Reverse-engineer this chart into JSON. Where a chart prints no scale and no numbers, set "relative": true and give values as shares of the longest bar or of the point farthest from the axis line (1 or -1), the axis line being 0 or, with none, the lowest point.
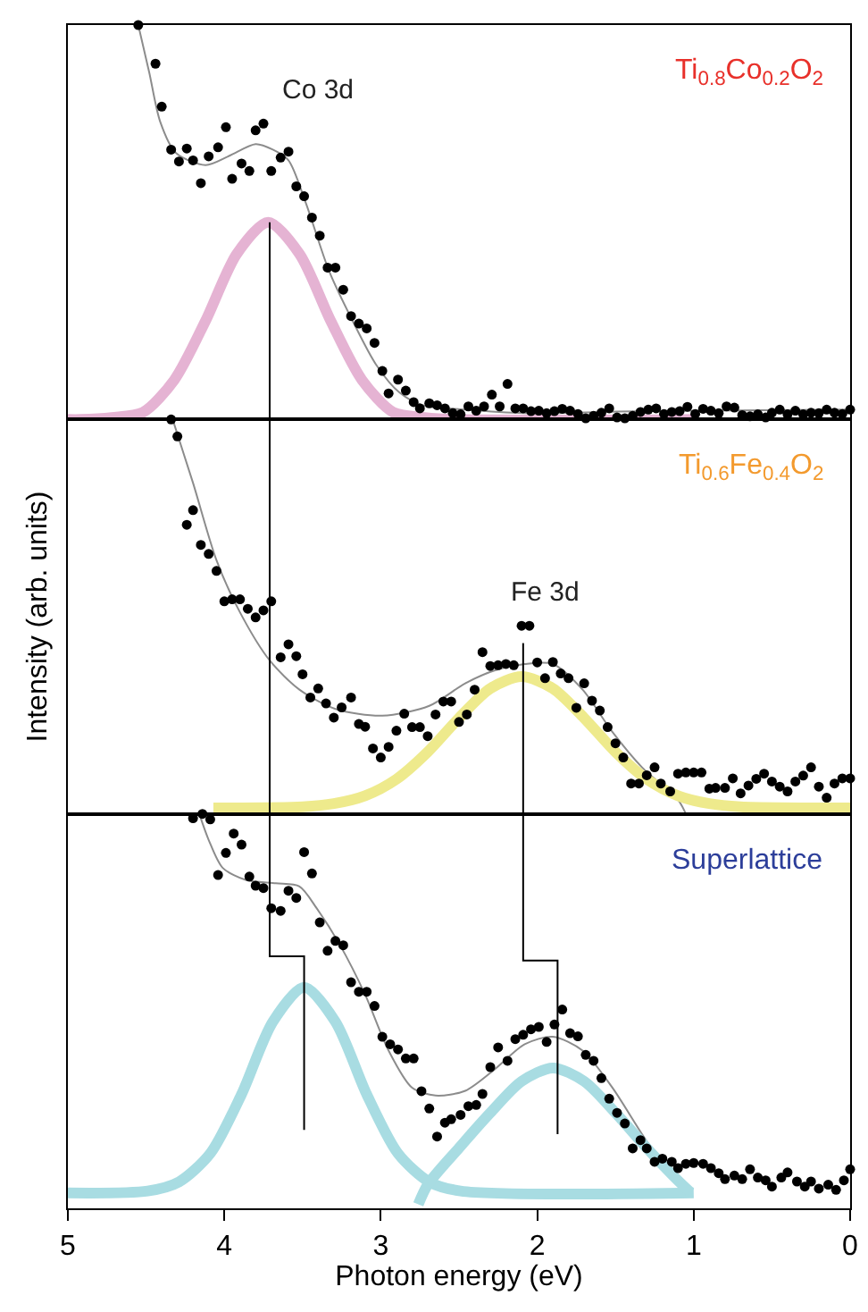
{
  "chart_data": [
    {
      "type": "scatter",
      "title": "Ti$_{0.8}$Co$_{0.2}$O$_{2}$",
      "relative": true,
      "xlim": [
        5,
        0
      ],
      "tick_labels": false,
      "marker": "circle",
      "annotations": [
        "Co 3d"
      ],
      "series": [
        {
          "color": "#000000",
          "x": [
            4.55,
            4.44,
            4.4,
            4.34,
            4.29,
            4.24,
            4.2,
            4.15,
            4.1,
            4.04,
            3.99,
            3.95,
            3.89,
            3.84,
            3.8,
            3.75,
            3.7,
            3.64,
            3.59,
            3.54,
            3.49,
            3.44,
            3.39,
            3.34,
            3.29,
            3.24,
            3.19,
            3.14,
            3.09,
            3.04,
            2.99,
            2.95,
            2.89,
            2.84,
            2.79,
            2.75,
            2.69,
            2.64,
            2.59,
            2.54,
            2.49,
            2.44,
            2.39,
            2.34,
            2.29,
            2.24,
            2.19,
            2.14,
            2.09,
            2.04,
            1.99,
            1.94,
            1.89,
            1.84,
            1.79,
            1.74,
            1.69,
            1.64,
            1.59,
            1.54,
            1.49,
            1.44,
            1.39,
            1.34,
            1.29,
            1.24,
            1.19,
            1.14,
            1.09,
            1.04,
            0.99,
            0.94,
            0.89,
            0.84,
            0.79,
            0.74,
            0.69,
            0.64,
            0.59,
            0.54,
            0.5,
            0.45,
            0.4,
            0.35,
            0.3,
            0.25,
            0.2,
            0.15,
            0.1,
            0.05,
            0.0
          ],
          "values": [
            1.0,
            0.902,
            0.793,
            0.684,
            0.654,
            0.687,
            0.657,
            0.599,
            0.667,
            0.69,
            0.741,
            0.61,
            0.649,
            0.63,
            0.733,
            0.75,
            0.63,
            0.664,
            0.679,
            0.591,
            0.566,
            0.512,
            0.466,
            0.385,
            0.385,
            0.329,
            0.262,
            0.243,
            0.231,
            0.194,
            0.123,
            0.066,
            0.101,
            0.073,
            0.044,
            0.028,
            0.041,
            0.036,
            0.028,
            0.016,
            0.013,
            0.033,
            0.022,
            0.033,
            0.063,
            0.033,
            0.09,
            0.028,
            0.028,
            0.021,
            0.022,
            0.016,
            0.021,
            0.027,
            0.022,
            0.014,
            0.003,
            0.009,
            0.017,
            0.028,
            0.005,
            0.003,
            0.009,
            0.019,
            0.025,
            0.028,
            0.014,
            0.019,
            0.021,
            0.032,
            0.014,
            0.027,
            0.022,
            0.016,
            0.033,
            0.03,
            0.011,
            0.008,
            0.013,
            0.005,
            0.017,
            0.025,
            0.013,
            0.022,
            0.013,
            0.017,
            0.016,
            0.025,
            0.017,
            0.014,
            0.025
          ]
        },
        {
          "type": "line",
          "marker": "none",
          "color": "#8c8c8c",
          "x": [
            4.55,
            4.48,
            4.41,
            4.31,
            4.12,
            3.97,
            3.8,
            3.69,
            3.59,
            3.48,
            3.33,
            3.18,
            3.03,
            2.88,
            2.73,
            2.46,
            2.08,
            1.33,
            0.0
          ],
          "values": [
            1.0,
            0.88,
            0.755,
            0.676,
            0.645,
            0.668,
            0.698,
            0.684,
            0.657,
            0.55,
            0.376,
            0.25,
            0.139,
            0.068,
            0.036,
            0.025,
            0.016,
            0.021,
            0.025
          ]
        },
        {
          "type": "line",
          "marker": "none",
          "color": "#e5b3d3",
          "x": [
            5.0,
            4.92,
            4.72,
            4.52,
            4.32,
            4.12,
            3.92,
            3.72,
            3.52,
            3.32,
            3.12,
            2.92,
            2.72,
            2.52,
            1.0
          ],
          "values": [
            0.0,
            0.0,
            0.005,
            0.018,
            0.1,
            0.25,
            0.42,
            0.5,
            0.42,
            0.25,
            0.1,
            0.018,
            0.005,
            0.0,
            0.0
          ]
        },
        {
          "type": "line",
          "marker": "none",
          "color": "#000000",
          "x": [
            3.71,
            3.71
          ],
          "values": [
            0.5,
            0.0
          ]
        }
      ]
    },
    {
      "type": "scatter",
      "title": "Ti$_{0.6}$Fe$_{0.4}$O$_{2}$",
      "ylabel": "Intensity (arb. units)",
      "relative": true,
      "xlim": [
        5,
        0
      ],
      "tick_labels": false,
      "marker": "circle",
      "annotations": [
        "Fe 3d"
      ],
      "ref_lines": [
        {
          "axis": "x",
          "value": 3.71,
          "color": "#000000"
        }
      ],
      "series": [
        {
          "color": "#000000",
          "x": [
            4.34,
            4.3,
            4.24,
            4.2,
            4.15,
            4.1,
            4.05,
            4.0,
            3.95,
            3.9,
            3.85,
            3.8,
            3.75,
            3.7,
            3.64,
            3.59,
            3.54,
            3.5,
            3.45,
            3.4,
            3.35,
            3.3,
            3.25,
            3.19,
            3.14,
            3.1,
            3.05,
            3.0,
            2.95,
            2.9,
            2.85,
            2.8,
            2.75,
            2.7,
            2.65,
            2.6,
            2.55,
            2.5,
            2.45,
            2.4,
            2.35,
            2.3,
            2.25,
            2.2,
            2.15,
            2.1,
            2.05,
            2.0,
            1.95,
            1.9,
            1.85,
            1.8,
            1.75,
            1.7,
            1.65,
            1.6,
            1.55,
            1.5,
            1.45,
            1.4,
            1.35,
            1.3,
            1.25,
            1.21,
            1.15,
            1.1,
            1.05,
            1.0,
            0.95,
            0.9,
            0.86,
            0.8,
            0.75,
            0.7,
            0.65,
            0.6,
            0.55,
            0.5,
            0.45,
            0.4,
            0.35,
            0.3,
            0.25,
            0.2,
            0.15,
            0.1,
            0.05,
            0.0
          ],
          "values": [
            1.0,
            0.957,
            0.733,
            0.77,
            0.682,
            0.659,
            0.616,
            0.539,
            0.544,
            0.544,
            0.52,
            0.498,
            0.516,
            0.539,
            0.397,
            0.43,
            0.4,
            0.354,
            0.295,
            0.318,
            0.28,
            0.244,
            0.27,
            0.295,
            0.228,
            0.221,
            0.166,
            0.143,
            0.17,
            0.211,
            0.254,
            0.22,
            0.22,
            0.197,
            0.252,
            0.285,
            0.285,
            0.233,
            0.252,
            0.315,
            0.41,
            0.375,
            0.377,
            0.38,
            0.377,
            0.477,
            0.477,
            0.384,
            0.344,
            0.385,
            0.356,
            0.344,
            0.269,
            0.331,
            0.287,
            0.262,
            0.22,
            0.179,
            0.143,
            0.077,
            0.077,
            0.098,
            0.118,
            0.077,
            0.057,
            0.102,
            0.105,
            0.105,
            0.105,
            0.064,
            0.066,
            0.066,
            0.09,
            0.052,
            0.072,
            0.089,
            0.102,
            0.082,
            0.069,
            0.057,
            0.082,
            0.097,
            0.118,
            0.069,
            0.041,
            0.077,
            0.09,
            0.09
          ]
        },
        {
          "type": "line",
          "marker": "none",
          "color": "#8c8c8c",
          "x": [
            4.33,
            4.2,
            4.05,
            3.9,
            3.71,
            3.52,
            3.29,
            2.99,
            2.69,
            2.46,
            2.27,
            2.08,
            1.9,
            1.71,
            1.52,
            1.33,
            1.1,
            1.05
          ],
          "values": [
            1.0,
            0.839,
            0.643,
            0.511,
            0.389,
            0.315,
            0.266,
            0.249,
            0.274,
            0.331,
            0.364,
            0.38,
            0.38,
            0.315,
            0.208,
            0.118,
            0.036,
            0.0
          ]
        },
        {
          "type": "line",
          "marker": "none",
          "color": "#eeea8c",
          "x": [
            4.07,
            3.5,
            3.3,
            3.1,
            2.9,
            2.7,
            2.5,
            2.3,
            2.1,
            1.9,
            1.7,
            1.5,
            1.3,
            1.1,
            0.9,
            0.7,
            0.0
          ],
          "values": [
            0.015,
            0.018,
            0.026,
            0.046,
            0.088,
            0.157,
            0.243,
            0.318,
            0.348,
            0.318,
            0.243,
            0.157,
            0.088,
            0.046,
            0.026,
            0.018,
            0.015
          ]
        },
        {
          "type": "line",
          "marker": "none",
          "color": "#000000",
          "x": [
            2.09,
            2.09
          ],
          "values": [
            0.433,
            0.0
          ]
        }
      ]
    },
    {
      "type": "scatter",
      "title": "Superlattice",
      "xlabel": "Photon energy (eV)",
      "relative": true,
      "xlim": [
        5,
        0
      ],
      "xticks": [
        5,
        4,
        3,
        2,
        1,
        0
      ],
      "tick_labels": "x",
      "marker": "circle",
      "series": [
        {
          "color": "#000000",
          "x": [
            4.2,
            4.14,
            4.09,
            4.04,
            3.99,
            3.94,
            3.89,
            3.84,
            3.8,
            3.75,
            3.7,
            3.64,
            3.59,
            3.54,
            3.49,
            3.44,
            3.39,
            3.34,
            3.29,
            3.24,
            3.19,
            3.14,
            3.09,
            3.04,
            2.99,
            2.94,
            2.89,
            2.84,
            2.79,
            2.74,
            2.69,
            2.64,
            2.59,
            2.55,
            2.49,
            2.44,
            2.39,
            2.35,
            2.3,
            2.25,
            2.19,
            2.14,
            2.09,
            2.04,
            1.99,
            1.94,
            1.89,
            1.84,
            1.79,
            1.74,
            1.69,
            1.64,
            1.59,
            1.54,
            1.49,
            1.44,
            1.39,
            1.34,
            1.3,
            1.25,
            1.2,
            1.14,
            1.1,
            1.05,
            1.0,
            0.94,
            0.89,
            0.84,
            0.8,
            0.74,
            0.69,
            0.64,
            0.59,
            0.54,
            0.5,
            0.44,
            0.4,
            0.34,
            0.29,
            0.25,
            0.2,
            0.14,
            0.09,
            0.04,
            0.0
          ],
          "values": [
            0.989,
            1.0,
            0.986,
            0.845,
            0.901,
            0.95,
            0.922,
            0.841,
            0.818,
            0.812,
            0.761,
            0.754,
            0.805,
            0.787,
            0.903,
            0.849,
            0.725,
            0.653,
            0.678,
            0.667,
            0.573,
            0.549,
            0.549,
            0.513,
            0.435,
            0.416,
            0.403,
            0.38,
            0.38,
            0.297,
            0.253,
            0.182,
            0.217,
            0.226,
            0.237,
            0.259,
            0.262,
            0.29,
            0.358,
            0.408,
            0.374,
            0.429,
            0.44,
            0.454,
            0.46,
            0.422,
            0.466,
            0.504,
            0.444,
            0.436,
            0.389,
            0.374,
            0.33,
            0.278,
            0.242,
            0.215,
            0.152,
            0.173,
            0.152,
            0.118,
            0.126,
            0.118,
            0.102,
            0.113,
            0.115,
            0.113,
            0.102,
            0.089,
            0.074,
            0.083,
            0.074,
            0.099,
            0.078,
            0.071,
            0.055,
            0.078,
            0.091,
            0.068,
            0.055,
            0.068,
            0.05,
            0.06,
            0.047,
            0.071,
            0.099
          ]
        },
        {
          "type": "line",
          "marker": "none",
          "color": "#8c8c8c",
          "x": [
            4.16,
            4.1,
            4.01,
            3.86,
            3.67,
            3.52,
            3.41,
            3.26,
            3.1,
            2.95,
            2.8,
            2.65,
            2.46,
            2.27,
            2.08,
            1.9,
            1.71,
            1.52,
            1.33,
            1.18,
            1.1
          ],
          "values": [
            1.0,
            0.934,
            0.863,
            0.832,
            0.824,
            0.816,
            0.761,
            0.667,
            0.542,
            0.4,
            0.306,
            0.286,
            0.298,
            0.353,
            0.416,
            0.435,
            0.4,
            0.306,
            0.188,
            0.102,
            0.078
          ]
        },
        {
          "type": "line",
          "marker": "none",
          "color": "#a8dce2",
          "x": [
            5.0,
            4.49,
            4.29,
            4.09,
            3.89,
            3.69,
            3.49,
            3.29,
            3.09,
            2.89,
            2.69,
            2.49,
            1.0
          ],
          "values": [
            0.039,
            0.044,
            0.067,
            0.139,
            0.289,
            0.473,
            0.56,
            0.473,
            0.289,
            0.139,
            0.067,
            0.044,
            0.039
          ]
        },
        {
          "type": "line",
          "marker": "none",
          "color": "#a8dce2",
          "x": [
            2.76,
            2.7,
            2.5,
            2.3,
            2.1,
            1.9,
            1.7,
            1.5,
            1.3,
            1.1,
            1.02
          ],
          "values": [
            0.01,
            0.06,
            0.153,
            0.242,
            0.322,
            0.356,
            0.322,
            0.242,
            0.153,
            0.07,
            0.04
          ]
        },
        {
          "type": "line",
          "marker": "none",
          "color": "#000000",
          "x": [
            3.71,
            3.71,
            3.49,
            3.49
          ],
          "values": [
            1.0,
            0.639,
            0.639,
            0.199
          ]
        },
        {
          "type": "line",
          "marker": "none",
          "color": "#000000",
          "x": [
            2.09,
            2.09,
            1.87,
            1.87
          ],
          "values": [
            1.0,
            0.628,
            0.628,
            0.188
          ]
        }
      ]
    }
  ]
}
